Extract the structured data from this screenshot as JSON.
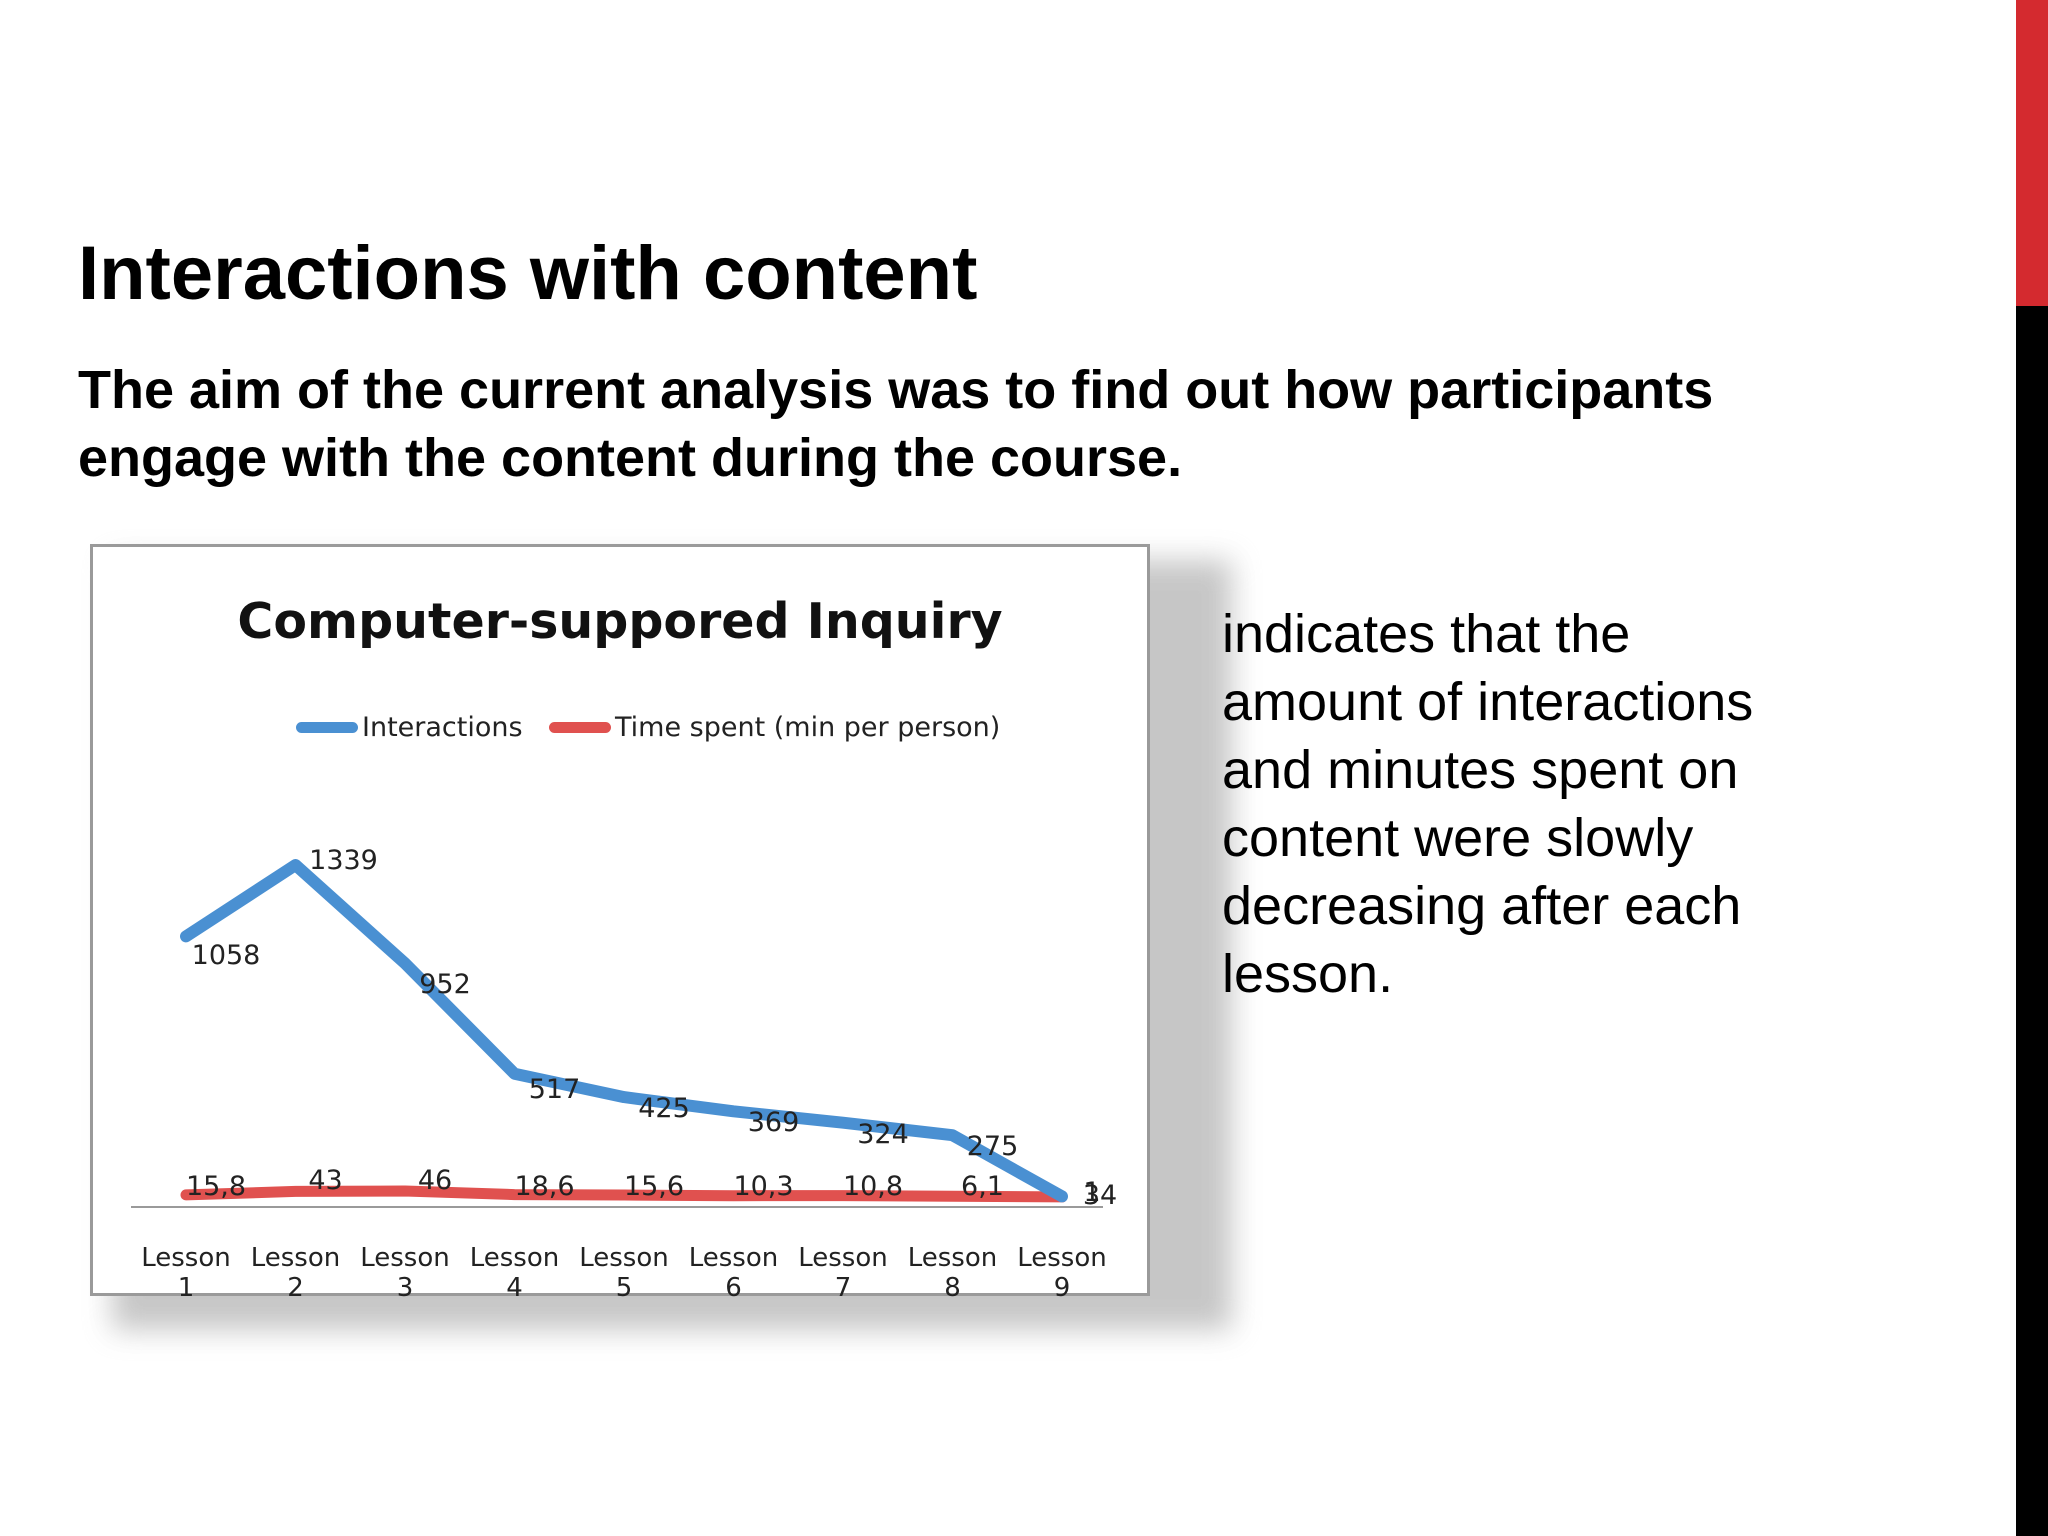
{
  "slide": {
    "title": "Interactions with content",
    "subtitle": "The aim of the current analysis was to find out how participants engage with the content during the course.",
    "side_text": "indicates that the amount of interactions and minutes spent on content were slowly decreasing after each lesson."
  },
  "colors": {
    "accent_red": "#d42a2f",
    "accent_black": "#000000"
  },
  "chart_data": {
    "type": "line",
    "title": "Computer-suppored Inquiry",
    "categories": [
      "Lesson 1",
      "Lesson 2",
      "Lesson 3",
      "Lesson 4",
      "Lesson 5",
      "Lesson 6",
      "Lesson 7",
      "Lesson 8",
      "Lesson 9"
    ],
    "series": [
      {
        "name": "Interactions",
        "color": "#4a90d2",
        "values": [
          1058,
          1339,
          952,
          517,
          425,
          369,
          324,
          275,
          34
        ],
        "labels": [
          "1058",
          "1339",
          "952",
          "517",
          "425",
          "369",
          "324",
          "275",
          "34"
        ]
      },
      {
        "name": "Time spent (min per person)",
        "color": "#e0514f",
        "values": [
          15.8,
          43,
          46,
          18.6,
          15.6,
          10.3,
          10.8,
          6.1,
          1
        ],
        "labels": [
          "15,8",
          "43",
          "46",
          "18,6",
          "15,6",
          "10,3",
          "10,8",
          "6,1",
          "1"
        ]
      }
    ],
    "ylim": [
      0,
      1400
    ],
    "legend": "top",
    "grid": false,
    "xlabel": "",
    "ylabel": ""
  }
}
